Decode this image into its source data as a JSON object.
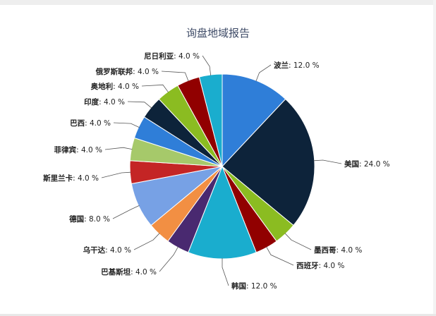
{
  "chart_data": {
    "type": "pie",
    "title": "询盘地域报告",
    "slices": [
      {
        "name": "波兰",
        "value": 12.0,
        "label": "12.0 %",
        "color": "#2f7ed8"
      },
      {
        "name": "美国",
        "value": 24.0,
        "label": "24.0 %",
        "color": "#0d233a"
      },
      {
        "name": "墨西哥",
        "value": 4.0,
        "label": "4.0 %",
        "color": "#8bbc21"
      },
      {
        "name": "西班牙",
        "value": 4.0,
        "label": "4.0 %",
        "color": "#910000"
      },
      {
        "name": "韩国",
        "value": 12.0,
        "label": "12.0 %",
        "color": "#1aadce"
      },
      {
        "name": "巴基斯坦",
        "value": 4.0,
        "label": "4.0 %",
        "color": "#492970"
      },
      {
        "name": "乌干达",
        "value": 4.0,
        "label": "4.0 %",
        "color": "#f28f43"
      },
      {
        "name": "德国",
        "value": 8.0,
        "label": "8.0 %",
        "color": "#77a1e5"
      },
      {
        "name": "斯里兰卡",
        "value": 4.0,
        "label": "4.0 %",
        "color": "#c42525"
      },
      {
        "name": "菲律宾",
        "value": 4.0,
        "label": "4.0 %",
        "color": "#a6c96a"
      },
      {
        "name": "巴西",
        "value": 4.0,
        "label": "4.0 %",
        "color": "#2f7ed8"
      },
      {
        "name": "印度",
        "value": 4.0,
        "label": "4.0 %",
        "color": "#0d233a"
      },
      {
        "name": "奥地利",
        "value": 4.0,
        "label": "4.0 %",
        "color": "#8bbc21"
      },
      {
        "name": "俄罗斯联邦",
        "value": 4.0,
        "label": "4.0 %",
        "color": "#910000"
      },
      {
        "name": "尼日利亚",
        "value": 4.0,
        "label": "4.0 %",
        "color": "#1aadce"
      }
    ]
  }
}
